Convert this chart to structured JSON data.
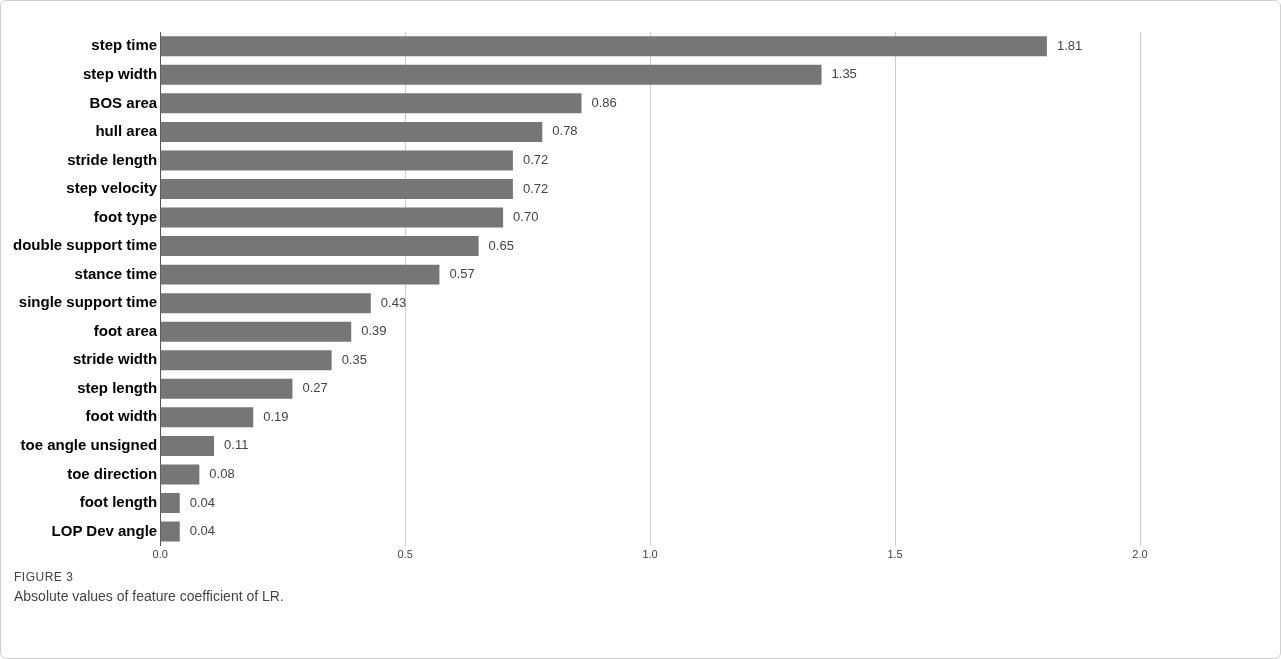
{
  "chart_data": {
    "type": "bar",
    "orientation": "horizontal",
    "categories": [
      "step time",
      "step width",
      "BOS area",
      "hull area",
      "stride length",
      "step velocity",
      "foot type",
      "double support time",
      "stance time",
      "single support time",
      "foot area",
      "stride width",
      "step length",
      "foot width",
      "toe angle unsigned",
      "toe direction",
      "foot length",
      "LOP Dev angle"
    ],
    "values": [
      1.81,
      1.35,
      0.86,
      0.78,
      0.72,
      0.72,
      0.7,
      0.65,
      0.57,
      0.43,
      0.39,
      0.35,
      0.27,
      0.19,
      0.11,
      0.08,
      0.04,
      0.04
    ],
    "value_labels": [
      "1.81",
      "1.35",
      "0.86",
      "0.78",
      "0.72",
      "0.72",
      "0.70",
      "0.65",
      "0.57",
      "0.43",
      "0.39",
      "0.35",
      "0.27",
      "0.19",
      "0.11",
      "0.08",
      "0.04",
      "0.04"
    ],
    "color": "#767676",
    "xlim": [
      0,
      2.0
    ],
    "xticks": [
      {
        "value": 0,
        "label": "0.0"
      },
      {
        "value": 0.5,
        "label": "0.5"
      },
      {
        "value": 1.0,
        "label": "1.0"
      },
      {
        "value": 1.5,
        "label": "1.5"
      },
      {
        "value": 2.0,
        "label": "2.0"
      }
    ],
    "grid": "x",
    "legend": false,
    "annotations": [
      "FIGURE 3",
      "Absolute values of feature coefficient of LR."
    ]
  }
}
